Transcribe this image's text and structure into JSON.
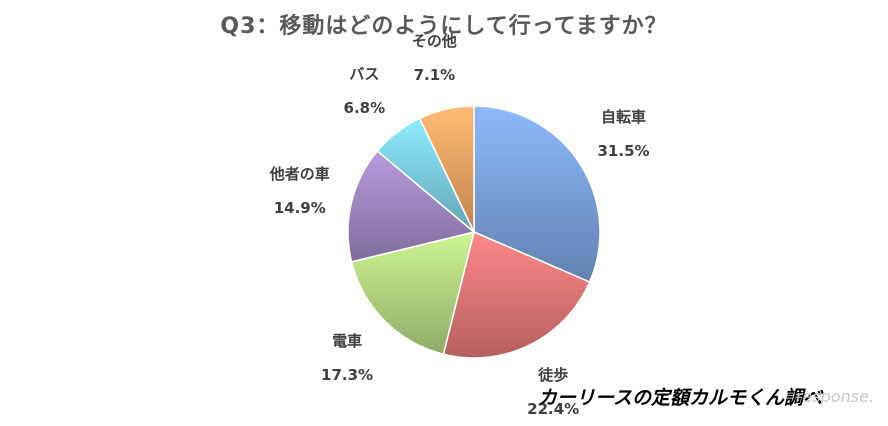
{
  "chart_data": {
    "type": "pie",
    "title": "Q3：移動はどのようにして行ってますか？",
    "slices": [
      {
        "label": "自転車",
        "value": 31.5,
        "value_label": "31.5%",
        "color": "#7ea6e0"
      },
      {
        "label": "徒歩",
        "value": 22.4,
        "value_label": "22.4%",
        "color": "#e87a7a"
      },
      {
        "label": "電車",
        "value": 17.3,
        "value_label": "17.3%",
        "color": "#b7dc84"
      },
      {
        "label": "他者の車",
        "value": 14.9,
        "value_label": "14.9%",
        "color": "#a48bc8"
      },
      {
        "label": "バス",
        "value": 6.8,
        "value_label": "6.8%",
        "color": "#7fd3e8"
      },
      {
        "label": "その他",
        "value": 7.1,
        "value_label": "7.1%",
        "color": "#f7a866"
      }
    ],
    "start": "top",
    "direction": "clockwise",
    "legend": "none"
  },
  "source": "カーリースの定額カルモくん調べ",
  "watermark": "response."
}
